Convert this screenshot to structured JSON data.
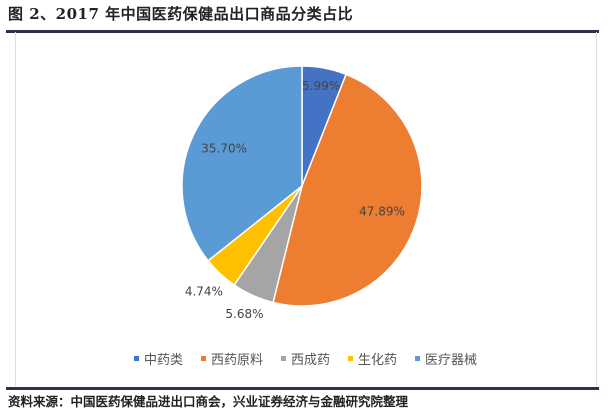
{
  "title": "图 2、2017 年中国医药保健品出口商品分类占比",
  "source": "资料来源：中国医药保健品进出口商会，兴业证券经济与金融研究院整理",
  "chart_data": {
    "type": "pie",
    "categories": [
      "中药类",
      "西药原料",
      "西成药",
      "生化药",
      "医疗器械"
    ],
    "values": [
      5.99,
      47.89,
      5.68,
      4.74,
      35.7
    ],
    "labels": [
      "5.99%",
      "47.89%",
      "5.68%",
      "4.74%",
      "35.70%"
    ],
    "colors": [
      "#4472c4",
      "#ed7d31",
      "#a5a5a5",
      "#ffc000",
      "#5b9bd5"
    ],
    "start_angle": "top",
    "direction": "clockwise",
    "legend": "bottom"
  }
}
